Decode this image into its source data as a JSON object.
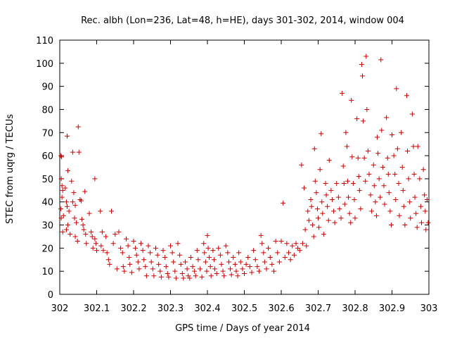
{
  "chart_data": {
    "type": "scatter",
    "title": "Rec. albh (Lon=236, Lat=48, h=HE), days 301-302, 2014, window 004",
    "xlabel": "GPS time / Days of year 2014",
    "ylabel": "STEC from uqrg / TECUs",
    "xlim": [
      302,
      303
    ],
    "ylim": [
      0,
      110
    ],
    "x_ticks": [
      302,
      302.1,
      302.2,
      302.3,
      302.4,
      302.5,
      302.6,
      302.7,
      302.8,
      302.9,
      303
    ],
    "x_tick_labels": [
      "302",
      "302.1",
      "302.2",
      "302.3",
      "302.4",
      "302.5",
      "302.6",
      "302.7",
      "302.8",
      "302.9",
      "303"
    ],
    "y_ticks": [
      0,
      10,
      20,
      30,
      40,
      50,
      60,
      70,
      80,
      90,
      100,
      110
    ],
    "y_tick_labels": [
      "0",
      "10",
      "20",
      "30",
      "40",
      "50",
      "60",
      "70",
      "80",
      "90",
      "100",
      "110"
    ],
    "grid": false,
    "marker": "+",
    "color": "#cc0000",
    "series": [
      {
        "points": [
          [
            302.003,
            60
          ],
          [
            302.005,
            59.5
          ],
          [
            302.004,
            50
          ],
          [
            302.006,
            47
          ],
          [
            302.008,
            45
          ],
          [
            302.006,
            42
          ],
          [
            302.003,
            37
          ],
          [
            302.01,
            34
          ],
          [
            302.004,
            33
          ],
          [
            302.008,
            27
          ],
          [
            302.015,
            46
          ],
          [
            302.02,
            68.5
          ],
          [
            302.022,
            53.5
          ],
          [
            302.018,
            40
          ],
          [
            302.02,
            38
          ],
          [
            302.025,
            36
          ],
          [
            302.022,
            30
          ],
          [
            302.018,
            28
          ],
          [
            302.028,
            26
          ],
          [
            302.035,
            61.5
          ],
          [
            302.032,
            49
          ],
          [
            302.038,
            44
          ],
          [
            302.035,
            40
          ],
          [
            302.042,
            38.5
          ],
          [
            302.04,
            33
          ],
          [
            302.045,
            31
          ],
          [
            302.042,
            25
          ],
          [
            302.048,
            23
          ],
          [
            302.05,
            72.5
          ],
          [
            302.052,
            61.5
          ],
          [
            302.055,
            41
          ],
          [
            302.058,
            40.5
          ],
          [
            302.06,
            32.5
          ],
          [
            302.063,
            30
          ],
          [
            302.065,
            28
          ],
          [
            302.068,
            44.5
          ],
          [
            302.07,
            26
          ],
          [
            302.072,
            22
          ],
          [
            302.08,
            35
          ],
          [
            302.085,
            27
          ],
          [
            302.088,
            25
          ],
          [
            302.09,
            20
          ],
          [
            302.095,
            50
          ],
          [
            302.095,
            24
          ],
          [
            302.098,
            22
          ],
          [
            302.1,
            19
          ],
          [
            302.11,
            36
          ],
          [
            302.115,
            27
          ],
          [
            302.112,
            21
          ],
          [
            302.118,
            19
          ],
          [
            302.125,
            25
          ],
          [
            302.128,
            18
          ],
          [
            302.132,
            15
          ],
          [
            302.135,
            13
          ],
          [
            302.14,
            36
          ],
          [
            302.145,
            22
          ],
          [
            302.15,
            26
          ],
          [
            302.155,
            11
          ],
          [
            302.16,
            27
          ],
          [
            302.165,
            20
          ],
          [
            302.17,
            18
          ],
          [
            302.172,
            12
          ],
          [
            302.175,
            10
          ],
          [
            302.18,
            24
          ],
          [
            302.185,
            21
          ],
          [
            302.188,
            16
          ],
          [
            302.19,
            13
          ],
          [
            302.195,
            9.5
          ],
          [
            302.2,
            23
          ],
          [
            302.205,
            20
          ],
          [
            302.208,
            17
          ],
          [
            302.212,
            14
          ],
          [
            302.215,
            11
          ],
          [
            302.22,
            22
          ],
          [
            302.225,
            19
          ],
          [
            302.228,
            15
          ],
          [
            302.232,
            12
          ],
          [
            302.235,
            8
          ],
          [
            302.24,
            21
          ],
          [
            302.245,
            18
          ],
          [
            302.248,
            14
          ],
          [
            302.252,
            11
          ],
          [
            302.255,
            8
          ],
          [
            302.26,
            20
          ],
          [
            302.265,
            17
          ],
          [
            302.268,
            13
          ],
          [
            302.272,
            10
          ],
          [
            302.275,
            7.5
          ],
          [
            302.28,
            19
          ],
          [
            302.285,
            16
          ],
          [
            302.288,
            12
          ],
          [
            302.292,
            9
          ],
          [
            302.295,
            7.5
          ],
          [
            302.3,
            21
          ],
          [
            302.305,
            18
          ],
          [
            302.308,
            14
          ],
          [
            302.312,
            10
          ],
          [
            302.315,
            7
          ],
          [
            302.32,
            22
          ],
          [
            302.325,
            17
          ],
          [
            302.328,
            13
          ],
          [
            302.332,
            9
          ],
          [
            302.335,
            7
          ],
          [
            302.34,
            14
          ],
          [
            302.345,
            11
          ],
          [
            302.348,
            8
          ],
          [
            302.352,
            7
          ],
          [
            302.355,
            16
          ],
          [
            302.36,
            12
          ],
          [
            302.365,
            10
          ],
          [
            302.368,
            8
          ],
          [
            302.372,
            19
          ],
          [
            302.375,
            15
          ],
          [
            302.38,
            11
          ],
          [
            302.385,
            7.5
          ],
          [
            302.39,
            22
          ],
          [
            302.392,
            18
          ],
          [
            302.395,
            14
          ],
          [
            302.398,
            10
          ],
          [
            302.4,
            25.5
          ],
          [
            302.402,
            20
          ],
          [
            302.405,
            16
          ],
          [
            302.408,
            12
          ],
          [
            302.41,
            8
          ],
          [
            302.415,
            19
          ],
          [
            302.418,
            15
          ],
          [
            302.42,
            11
          ],
          [
            302.425,
            9
          ],
          [
            302.43,
            20
          ],
          [
            302.435,
            17
          ],
          [
            302.438,
            13
          ],
          [
            302.442,
            10
          ],
          [
            302.445,
            8
          ],
          [
            302.45,
            21
          ],
          [
            302.455,
            18
          ],
          [
            302.458,
            14
          ],
          [
            302.462,
            11
          ],
          [
            302.465,
            8.5
          ],
          [
            302.47,
            16
          ],
          [
            302.475,
            13
          ],
          [
            302.478,
            10
          ],
          [
            302.482,
            8
          ],
          [
            302.485,
            18
          ],
          [
            302.49,
            14
          ],
          [
            302.495,
            11
          ],
          [
            302.5,
            9
          ],
          [
            302.505,
            13
          ],
          [
            302.51,
            16
          ],
          [
            302.515,
            12
          ],
          [
            302.52,
            9.5
          ],
          [
            302.525,
            19
          ],
          [
            302.53,
            15
          ],
          [
            302.535,
            12
          ],
          [
            302.54,
            10
          ],
          [
            302.545,
            25.5
          ],
          [
            302.548,
            22
          ],
          [
            302.552,
            18
          ],
          [
            302.555,
            14
          ],
          [
            302.56,
            11
          ],
          [
            302.565,
            20
          ],
          [
            302.57,
            16
          ],
          [
            302.575,
            13
          ],
          [
            302.58,
            10
          ],
          [
            302.585,
            23
          ],
          [
            302.59,
            18
          ],
          [
            302.595,
            14
          ],
          [
            302.6,
            23
          ],
          [
            302.605,
            39.5
          ],
          [
            302.61,
            16
          ],
          [
            302.615,
            22
          ],
          [
            302.62,
            18
          ],
          [
            302.625,
            15
          ],
          [
            302.63,
            21
          ],
          [
            302.635,
            17
          ],
          [
            302.64,
            22
          ],
          [
            302.645,
            20
          ],
          [
            302.65,
            19
          ],
          [
            302.655,
            56
          ],
          [
            302.658,
            22
          ],
          [
            302.662,
            46
          ],
          [
            302.665,
            28
          ],
          [
            302.668,
            21
          ],
          [
            302.672,
            36
          ],
          [
            302.675,
            32
          ],
          [
            302.68,
            41
          ],
          [
            302.682,
            38
          ],
          [
            302.685,
            30
          ],
          [
            302.688,
            25
          ],
          [
            302.69,
            63
          ],
          [
            302.692,
            49
          ],
          [
            302.695,
            44
          ],
          [
            302.698,
            37
          ],
          [
            302.7,
            33
          ],
          [
            302.702,
            29
          ],
          [
            302.705,
            54
          ],
          [
            302.708,
            69.5
          ],
          [
            302.71,
            40
          ],
          [
            302.712,
            35
          ],
          [
            302.715,
            26
          ],
          [
            302.72,
            48
          ],
          [
            302.722,
            43
          ],
          [
            302.725,
            38
          ],
          [
            302.728,
            32
          ],
          [
            302.73,
            58
          ],
          [
            302.735,
            45
          ],
          [
            302.738,
            41
          ],
          [
            302.742,
            36
          ],
          [
            302.745,
            31
          ],
          [
            302.75,
            48
          ],
          [
            302.755,
            42
          ],
          [
            302.758,
            37
          ],
          [
            302.762,
            33
          ],
          [
            302.765,
            87
          ],
          [
            302.768,
            55.5
          ],
          [
            302.77,
            48
          ],
          [
            302.772,
            39
          ],
          [
            302.775,
            70
          ],
          [
            302.778,
            64
          ],
          [
            302.78,
            49
          ],
          [
            302.782,
            42
          ],
          [
            302.785,
            35
          ],
          [
            302.788,
            31
          ],
          [
            302.79,
            84
          ],
          [
            302.792,
            59.5
          ],
          [
            302.795,
            48
          ],
          [
            302.798,
            41
          ],
          [
            302.8,
            33
          ],
          [
            302.805,
            76
          ],
          [
            302.808,
            59
          ],
          [
            302.81,
            51
          ],
          [
            302.812,
            45
          ],
          [
            302.815,
            37
          ],
          [
            302.818,
            99.5
          ],
          [
            302.82,
            94.5
          ],
          [
            302.822,
            75
          ],
          [
            302.825,
            59
          ],
          [
            302.828,
            49
          ],
          [
            302.83,
            103
          ],
          [
            302.832,
            80
          ],
          [
            302.835,
            62
          ],
          [
            302.838,
            52
          ],
          [
            302.842,
            43
          ],
          [
            302.845,
            36
          ],
          [
            302.85,
            56
          ],
          [
            302.852,
            47
          ],
          [
            302.855,
            40
          ],
          [
            302.858,
            34
          ],
          [
            302.86,
            68
          ],
          [
            302.862,
            61
          ],
          [
            302.865,
            50
          ],
          [
            302.868,
            42
          ],
          [
            302.87,
            101.5
          ],
          [
            302.872,
            71
          ],
          [
            302.875,
            55
          ],
          [
            302.878,
            47
          ],
          [
            302.88,
            39
          ],
          [
            302.885,
            76.5
          ],
          [
            302.888,
            59
          ],
          [
            302.89,
            52
          ],
          [
            302.892,
            44
          ],
          [
            302.895,
            36
          ],
          [
            302.898,
            30
          ],
          [
            302.9,
            69
          ],
          [
            302.905,
            60
          ],
          [
            302.908,
            52
          ],
          [
            302.91,
            41
          ],
          [
            302.912,
            89
          ],
          [
            302.915,
            63
          ],
          [
            302.918,
            48
          ],
          [
            302.92,
            34
          ],
          [
            302.925,
            70
          ],
          [
            302.928,
            55
          ],
          [
            302.93,
            45
          ],
          [
            302.932,
            38
          ],
          [
            302.935,
            30
          ],
          [
            302.94,
            86
          ],
          [
            302.942,
            62
          ],
          [
            302.945,
            50
          ],
          [
            302.948,
            40
          ],
          [
            302.95,
            33
          ],
          [
            302.955,
            78
          ],
          [
            302.958,
            64
          ],
          [
            302.96,
            52
          ],
          [
            302.962,
            42
          ],
          [
            302.965,
            35
          ],
          [
            302.968,
            29
          ],
          [
            302.97,
            64
          ],
          [
            302.975,
            50
          ],
          [
            302.978,
            38
          ],
          [
            302.98,
            31
          ],
          [
            302.985,
            54
          ],
          [
            302.988,
            43
          ],
          [
            302.99,
            36
          ],
          [
            302.992,
            28
          ],
          [
            302.995,
            41
          ],
          [
            302.998,
            31
          ]
        ]
      }
    ]
  }
}
